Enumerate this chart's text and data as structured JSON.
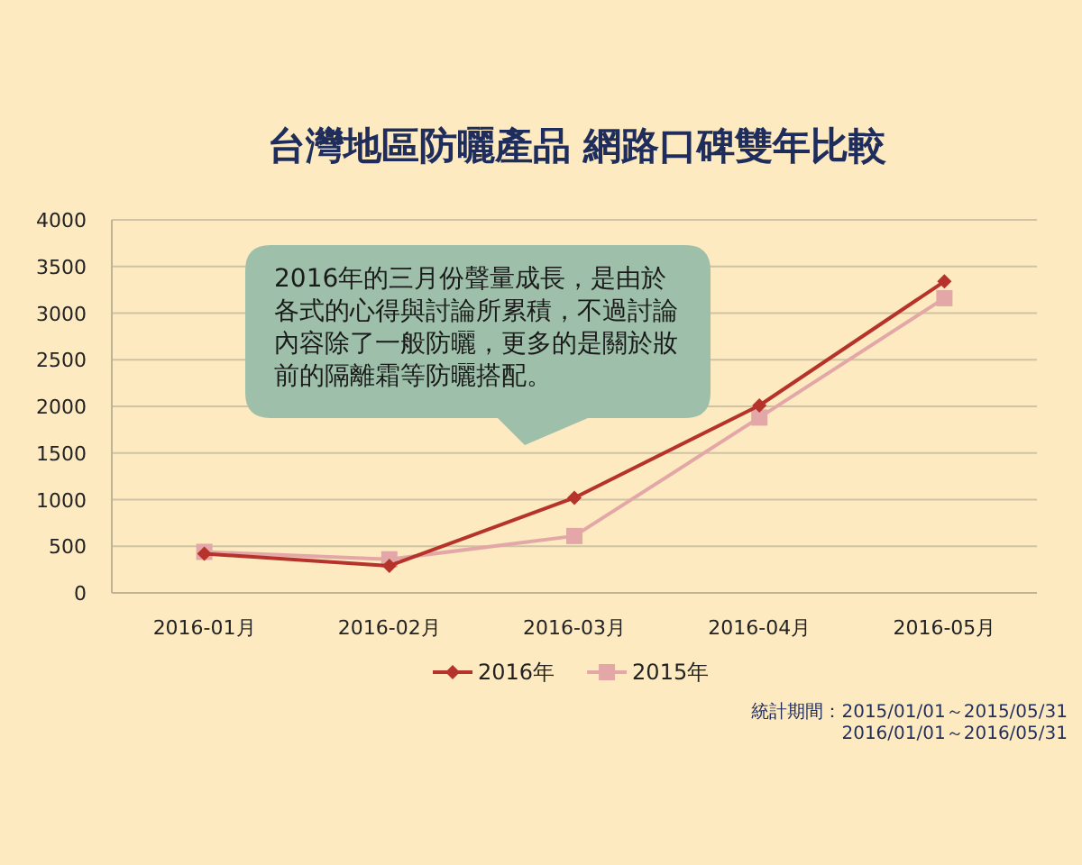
{
  "chart_data": {
    "type": "line",
    "title": "台灣地區防曬產品 網路口碑雙年比較",
    "categories": [
      "2016-01月",
      "2016-02月",
      "2016-03月",
      "2016-04月",
      "2016-05月"
    ],
    "series": [
      {
        "name": "2016年",
        "color": "#b5332a",
        "marker": "diamond",
        "values": [
          420,
          290,
          1020,
          2010,
          3340
        ]
      },
      {
        "name": "2015年",
        "color": "#e3a7a7",
        "marker": "square",
        "values": [
          440,
          360,
          610,
          1880,
          3160
        ]
      }
    ],
    "ylim": [
      0,
      4000
    ],
    "yticks": [
      0,
      500,
      1000,
      1500,
      2000,
      2500,
      3000,
      3500,
      4000
    ],
    "grid": "y",
    "legend": "bottom",
    "line_style": "solid",
    "annotations": [
      "2016年的三月份聲量成長，是由於各式的心得與討論所累積，不過討論內容除了一般防曬，更多的是關於妝前的隔離霜等防曬搭配。",
      "統計期間：2015/01/01～2015/05/31",
      "2016/01/01～2016/05/31"
    ]
  }
}
